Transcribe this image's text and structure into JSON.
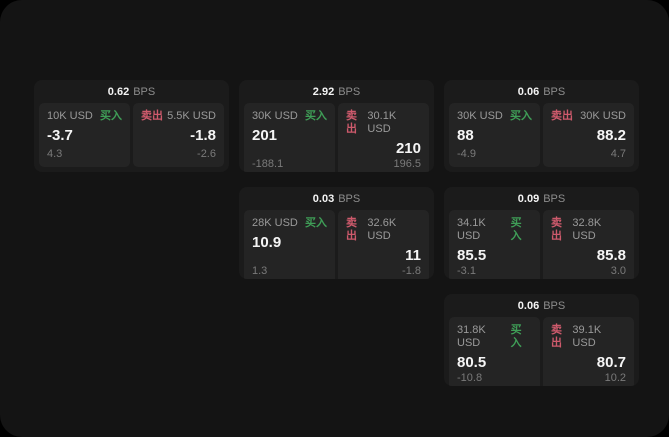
{
  "theme": {
    "page_bg": "#000000",
    "panel_bg": "#141414",
    "card_bg": "#1b1b1b",
    "tile_bg": "#242424",
    "text_primary": "#f5f5f5",
    "text_secondary": "#9a9a9a",
    "text_muted": "#7a7a7a",
    "buy_color": "#3f9e57",
    "sell_color": "#ce5a6c"
  },
  "labels": {
    "bps_unit": "BPS",
    "buy": "买入",
    "sell": "卖出"
  },
  "cards": [
    {
      "bps": "0.62",
      "buy": {
        "size": "10K USD",
        "value": "-3.7",
        "delta": "4.3"
      },
      "sell": {
        "size": "5.5K USD",
        "value": "-1.8",
        "delta": "-2.6"
      }
    },
    {
      "bps": "2.92",
      "buy": {
        "size": "30K USD",
        "value": "201",
        "delta": "-188.1"
      },
      "sell": {
        "size": "30.1K USD",
        "value": "210",
        "delta": "196.5"
      }
    },
    {
      "bps": "0.06",
      "buy": {
        "size": "30K USD",
        "value": "88",
        "delta": "-4.9"
      },
      "sell": {
        "size": "30K USD",
        "value": "88.2",
        "delta": "4.7"
      }
    },
    {
      "bps": "0.03",
      "buy": {
        "size": "28K USD",
        "value": "10.9",
        "delta": "1.3"
      },
      "sell": {
        "size": "32.6K USD",
        "value": "11",
        "delta": "-1.8"
      }
    },
    {
      "bps": "0.09",
      "buy": {
        "size": "34.1K USD",
        "value": "85.5",
        "delta": "-3.1"
      },
      "sell": {
        "size": "32.8K USD",
        "value": "85.8",
        "delta": "3.0"
      }
    },
    {
      "bps": "0.06",
      "buy": {
        "size": "31.8K USD",
        "value": "80.5",
        "delta": "-10.8"
      },
      "sell": {
        "size": "39.1K USD",
        "value": "80.7",
        "delta": "10.2"
      }
    }
  ]
}
